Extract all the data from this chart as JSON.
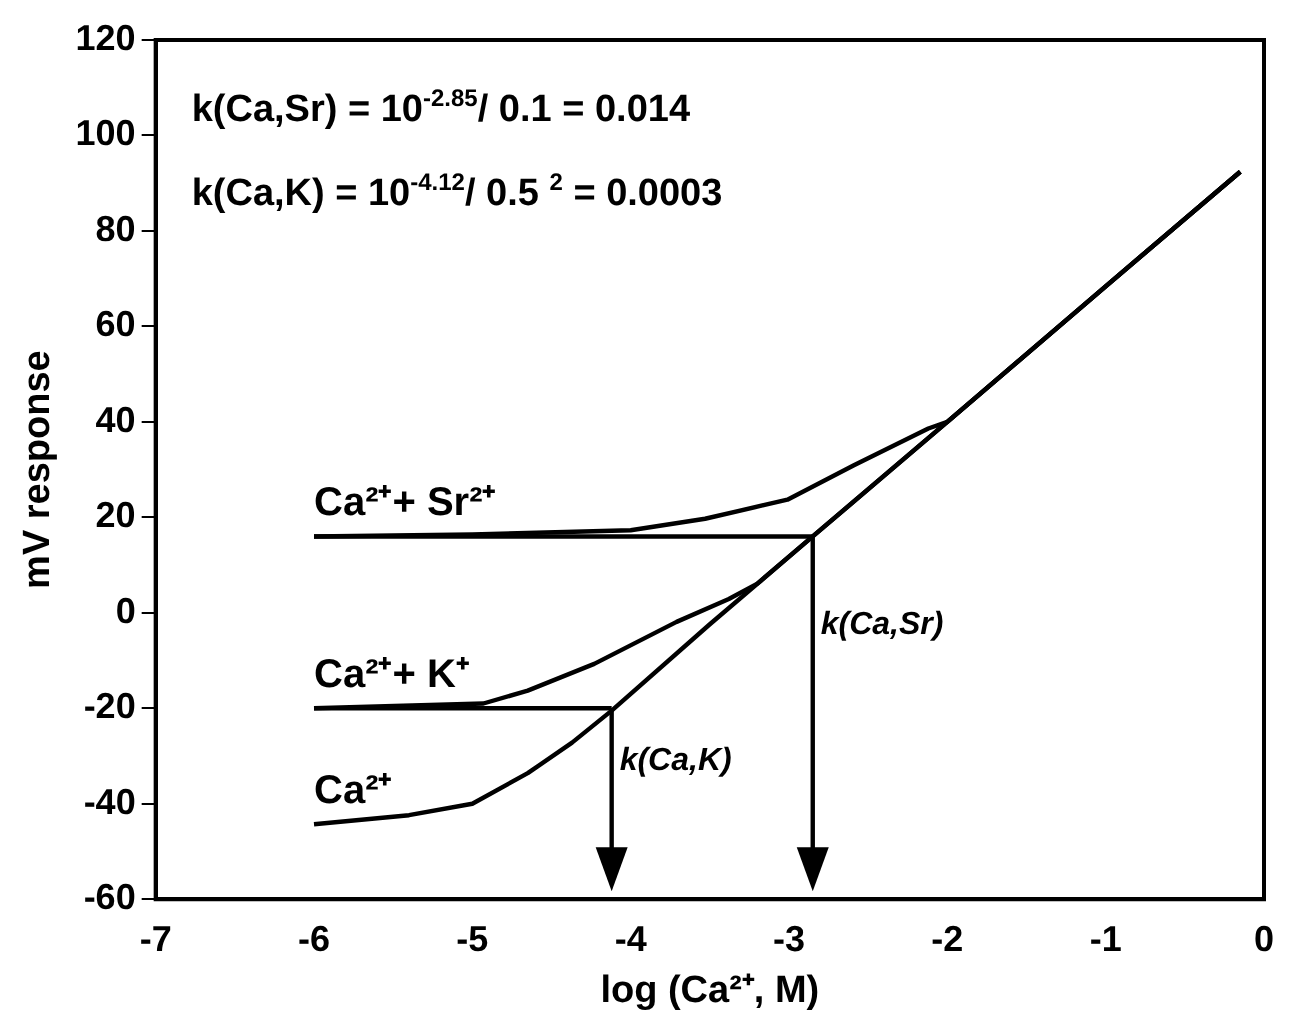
{
  "chart_data": {
    "type": "line",
    "xlabel": "log (Ca²⁺, M)",
    "ylabel": "mV response",
    "xlim": [
      -7,
      0
    ],
    "xticks": [
      -7,
      -6,
      -5,
      -4,
      -3,
      -2,
      -1,
      0
    ],
    "ylim": [
      -60,
      120
    ],
    "yticks": [
      -60,
      -40,
      -20,
      0,
      20,
      40,
      60,
      80,
      100,
      120
    ],
    "grid": false,
    "legend": false,
    "marker": "none",
    "line_style": "solid",
    "series": [
      {
        "name": "Ca²⁺+ Sr²⁺",
        "color": "#000000",
        "x": [
          -6,
          -5,
          -4,
          -3.53,
          -3.01,
          -2.59,
          -2.12,
          -2,
          -1,
          -0.15
        ],
        "values": [
          16,
          16.4,
          17.3,
          19.7,
          23.7,
          30.9,
          38.6,
          40,
          68.4,
          92.4
        ]
      },
      {
        "name": "Ca²⁺+ K⁺",
        "color": "#000000",
        "x": [
          -6,
          -4.93,
          -4.65,
          -4.23,
          -3.71,
          -3.38,
          -3.2,
          -2.85,
          -2,
          -1,
          -0.15
        ],
        "values": [
          -20,
          -19,
          -16.3,
          -10.7,
          -1.9,
          2.9,
          6.1,
          16,
          40,
          68.4,
          92.4
        ]
      },
      {
        "name": "Ca²⁺",
        "color": "#000000",
        "x": [
          -6,
          -5.4,
          -5,
          -4.65,
          -4.37,
          -4.12,
          -3.5,
          -2.85,
          -2,
          -1,
          -0.15
        ],
        "values": [
          -44.3,
          -42.4,
          -40,
          -33.6,
          -27.2,
          -20.5,
          -2.4,
          16,
          40,
          68.4,
          92.4
        ]
      },
      {
        "color": "#000000",
        "x": [
          -6,
          -2.85
        ],
        "values": [
          16,
          16
        ]
      },
      {
        "color": "#000000",
        "x": [
          -6,
          -4.12
        ],
        "values": [
          -20,
          -20
        ]
      }
    ],
    "annotations": [
      "k(Ca,Sr) = 10$^{-2.85}$/ 0.1 = 0.014",
      "k(Ca,K) = 10$^{-4.12}$/ 0.5 $^{2}$ = 0.0003",
      {
        "text": "k(Ca,Sr)",
        "x": -2.85,
        "y": 16
      },
      {
        "text": "k(Ca,K)",
        "x": -4.12,
        "y": -20
      }
    ]
  }
}
